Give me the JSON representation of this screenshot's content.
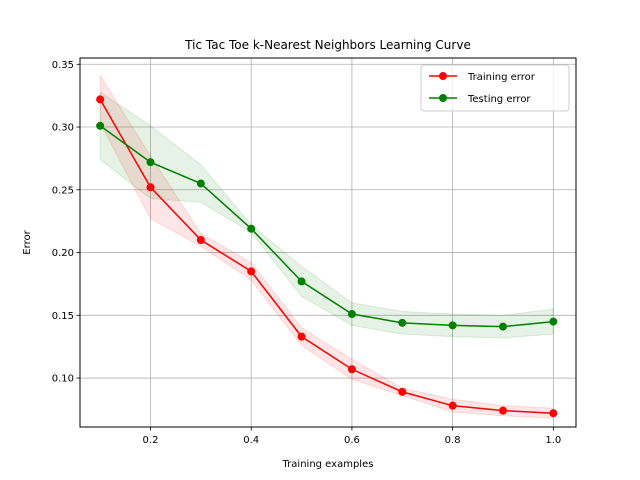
{
  "chart_data": {
    "type": "line",
    "title": "Tic Tac Toe k-Nearest Neighbors Learning Curve",
    "xlabel": "Training examples",
    "ylabel": "Error",
    "xlim": [
      0.06,
      1.045
    ],
    "ylim": [
      0.061,
      0.355
    ],
    "x_ticks": [
      0.2,
      0.4,
      0.6,
      0.8,
      1.0
    ],
    "x_tick_labels": [
      "0.2",
      "0.4",
      "0.6",
      "0.8",
      "1.0"
    ],
    "y_ticks": [
      0.1,
      0.15,
      0.2,
      0.25,
      0.3,
      0.35
    ],
    "y_tick_labels": [
      "0.10",
      "0.15",
      "0.20",
      "0.25",
      "0.30",
      "0.35"
    ],
    "grid": true,
    "legend_position": "top-right",
    "x": [
      0.1,
      0.2,
      0.3,
      0.4,
      0.5,
      0.6,
      0.7,
      0.8,
      0.9,
      1.0
    ],
    "series": [
      {
        "name": "Training error",
        "color": "#ff0000",
        "values": [
          0.322,
          0.252,
          0.21,
          0.185,
          0.133,
          0.107,
          0.089,
          0.078,
          0.074,
          0.072
        ],
        "band_upper": [
          0.341,
          0.277,
          0.215,
          0.192,
          0.14,
          0.115,
          0.092,
          0.083,
          0.078,
          0.076
        ],
        "band_lower": [
          0.303,
          0.227,
          0.205,
          0.178,
          0.126,
          0.099,
          0.086,
          0.073,
          0.07,
          0.068
        ]
      },
      {
        "name": "Testing error",
        "color": "#008000",
        "values": [
          0.301,
          0.272,
          0.255,
          0.219,
          0.177,
          0.151,
          0.144,
          0.142,
          0.141,
          0.145
        ],
        "band_upper": [
          0.328,
          0.301,
          0.27,
          0.222,
          0.189,
          0.16,
          0.153,
          0.151,
          0.15,
          0.155
        ],
        "band_lower": [
          0.274,
          0.243,
          0.24,
          0.216,
          0.165,
          0.142,
          0.135,
          0.133,
          0.132,
          0.135
        ]
      }
    ]
  }
}
